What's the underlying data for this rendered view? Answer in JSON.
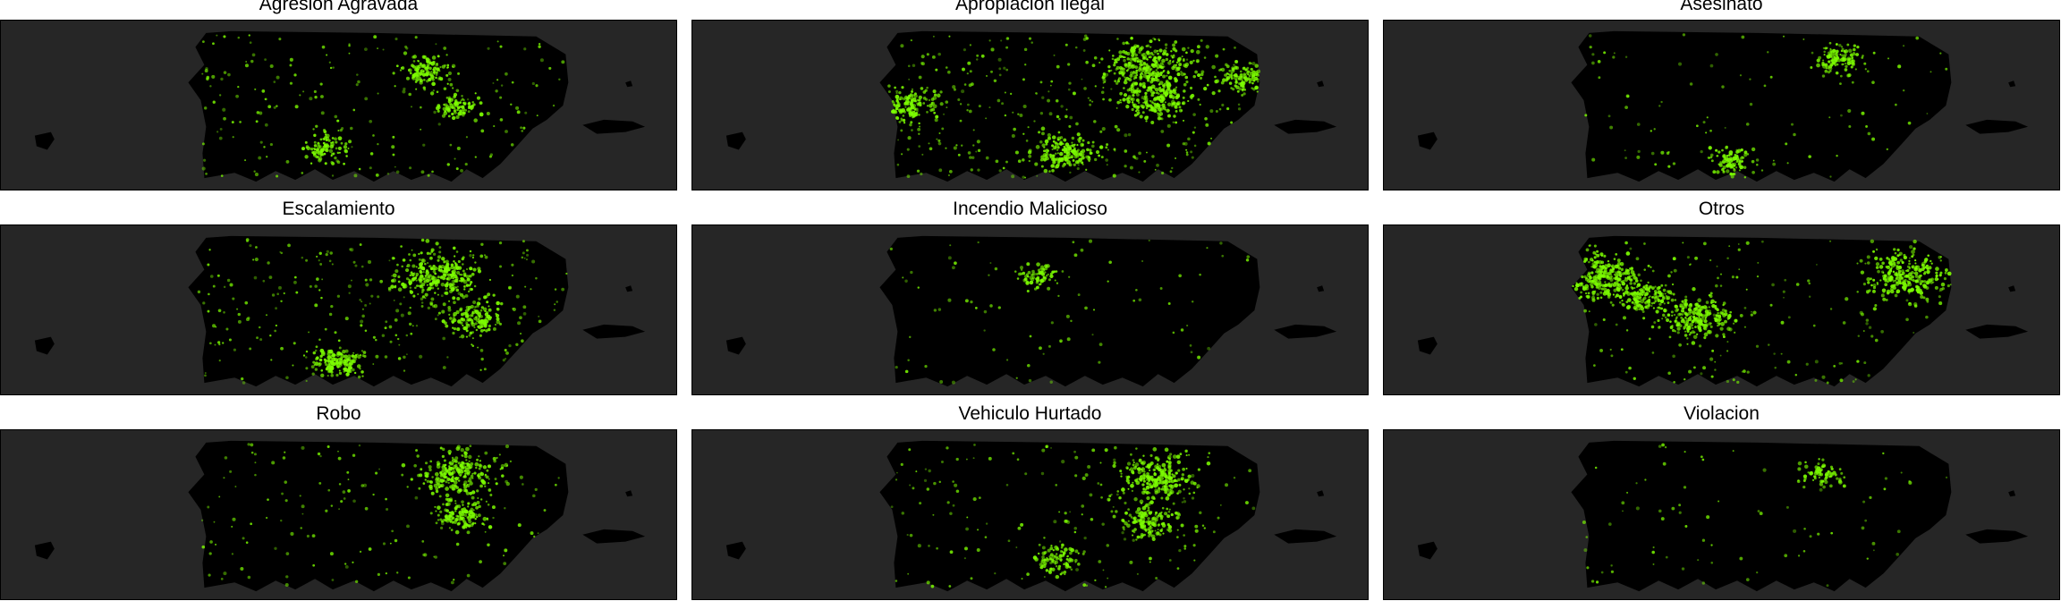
{
  "colors": {
    "ocean": "#262626",
    "land": "#000000",
    "points": "#7CFC00"
  },
  "panels": [
    {
      "title": "Agresion Agravada",
      "density": 0.55,
      "hotspots": [
        [
          0.62,
          0.25,
          0.3
        ],
        [
          0.35,
          0.8,
          0.2
        ],
        [
          0.7,
          0.5,
          0.2
        ]
      ]
    },
    {
      "title": "Apropiacion Ilegal",
      "density": 1.0,
      "hotspots": [
        [
          0.7,
          0.22,
          1.0
        ],
        [
          0.72,
          0.45,
          0.6
        ],
        [
          0.48,
          0.82,
          0.5
        ],
        [
          0.05,
          0.5,
          0.5
        ],
        [
          0.95,
          0.3,
          0.3
        ]
      ]
    },
    {
      "title": "Asesinato",
      "density": 0.15,
      "hotspots": [
        [
          0.7,
          0.18,
          0.3
        ],
        [
          0.4,
          0.88,
          0.2
        ]
      ]
    },
    {
      "title": "Escalamiento",
      "density": 0.8,
      "hotspots": [
        [
          0.65,
          0.25,
          0.9
        ],
        [
          0.38,
          0.85,
          0.4
        ],
        [
          0.75,
          0.55,
          0.4
        ]
      ]
    },
    {
      "title": "Incendio Malicioso",
      "density": 0.1,
      "hotspots": [
        [
          0.4,
          0.25,
          0.1
        ]
      ]
    },
    {
      "title": "Otros",
      "density": 0.45,
      "hotspots": [
        [
          0.05,
          0.25,
          1.0
        ],
        [
          0.32,
          0.55,
          0.7
        ],
        [
          0.88,
          0.25,
          0.9
        ],
        [
          0.18,
          0.4,
          0.4
        ]
      ]
    },
    {
      "title": "Robo",
      "density": 0.35,
      "hotspots": [
        [
          0.7,
          0.2,
          0.8
        ],
        [
          0.72,
          0.5,
          0.3
        ]
      ]
    },
    {
      "title": "Vehiculo Hurtado",
      "density": 0.45,
      "hotspots": [
        [
          0.72,
          0.22,
          0.8
        ],
        [
          0.7,
          0.55,
          0.4
        ],
        [
          0.45,
          0.8,
          0.2
        ]
      ]
    },
    {
      "title": "Violacion",
      "density": 0.08,
      "hotspots": [
        [
          0.65,
          0.2,
          0.1
        ]
      ]
    }
  ]
}
